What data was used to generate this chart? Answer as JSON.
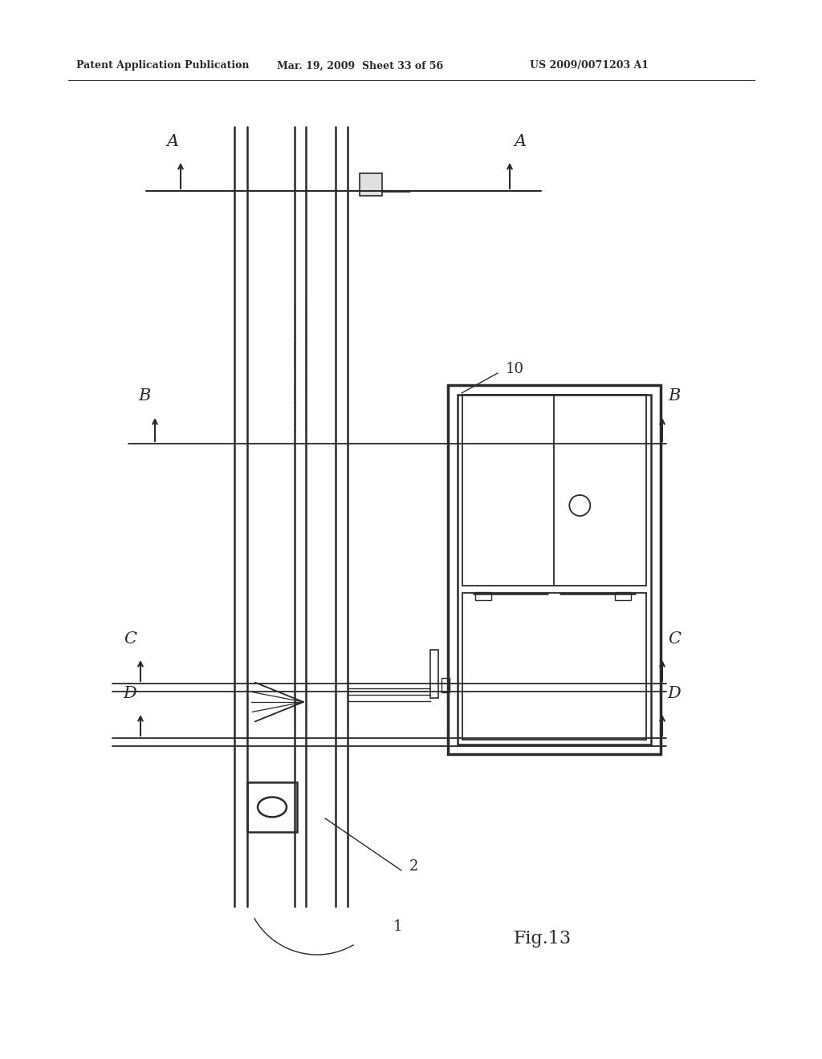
{
  "bg_color": "#ffffff",
  "line_color": "#2a2a2a",
  "header_text1": "Patent Application Publication",
  "header_text2": "Mar. 19, 2009  Sheet 33 of 56",
  "header_text3": "US 2009/0071203 A1",
  "fig_label": "Fig.13"
}
